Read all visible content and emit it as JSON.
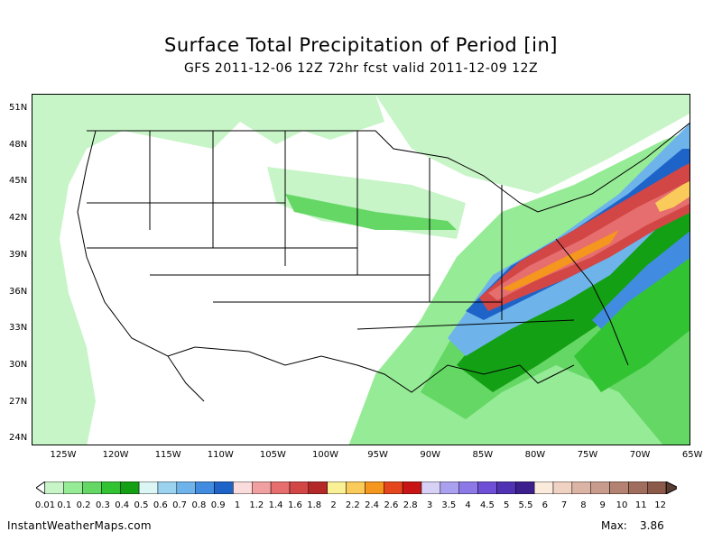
{
  "title": "Surface Total Precipitation of Period [in]",
  "subtitle": "GFS 2011-12-06 12Z 72hr fcst valid 2011-12-09 12Z",
  "map": {
    "lat_labels": [
      "51N",
      "48N",
      "45N",
      "42N",
      "39N",
      "36N",
      "33N",
      "30N",
      "27N",
      "24N"
    ],
    "lon_labels": [
      "125W",
      "120W",
      "115W",
      "110W",
      "105W",
      "100W",
      "95W",
      "90W",
      "85W",
      "80W",
      "75W",
      "70W",
      "65W"
    ]
  },
  "colorbar": {
    "labels": [
      "0.01",
      "0.1",
      "0.2",
      "0.3",
      "0.4",
      "0.5",
      "0.6",
      "0.7",
      "0.8",
      "0.9",
      "1",
      "1.2",
      "1.4",
      "1.6",
      "1.8",
      "2",
      "2.2",
      "2.4",
      "2.6",
      "2.8",
      "3",
      "3.5",
      "4",
      "4.5",
      "5",
      "5.5",
      "6",
      "7",
      "8",
      "9",
      "10",
      "11",
      "12"
    ],
    "colors": [
      "#c8f5c8",
      "#96eb96",
      "#64d764",
      "#32c332",
      "#14a014",
      "#dcf5f5",
      "#9bd2f0",
      "#6eb4eb",
      "#418ce1",
      "#1e64c8",
      "#fadcdc",
      "#f0a0a0",
      "#e66e6e",
      "#d24646",
      "#b42828",
      "#faf096",
      "#faca5a",
      "#f5961e",
      "#e6461e",
      "#c81414",
      "#d7d2f5",
      "#aaa0f0",
      "#8c78e6",
      "#6e50d7",
      "#5032b4",
      "#3c1e8c",
      "#faebdc",
      "#f0d2c3",
      "#dcb4a5",
      "#c89b8c",
      "#b48273",
      "#a06e5f",
      "#8c5a4b"
    ]
  },
  "footer": {
    "site": "InstantWeatherMaps.com",
    "max_label": "Max:",
    "max_value": "3.86"
  }
}
